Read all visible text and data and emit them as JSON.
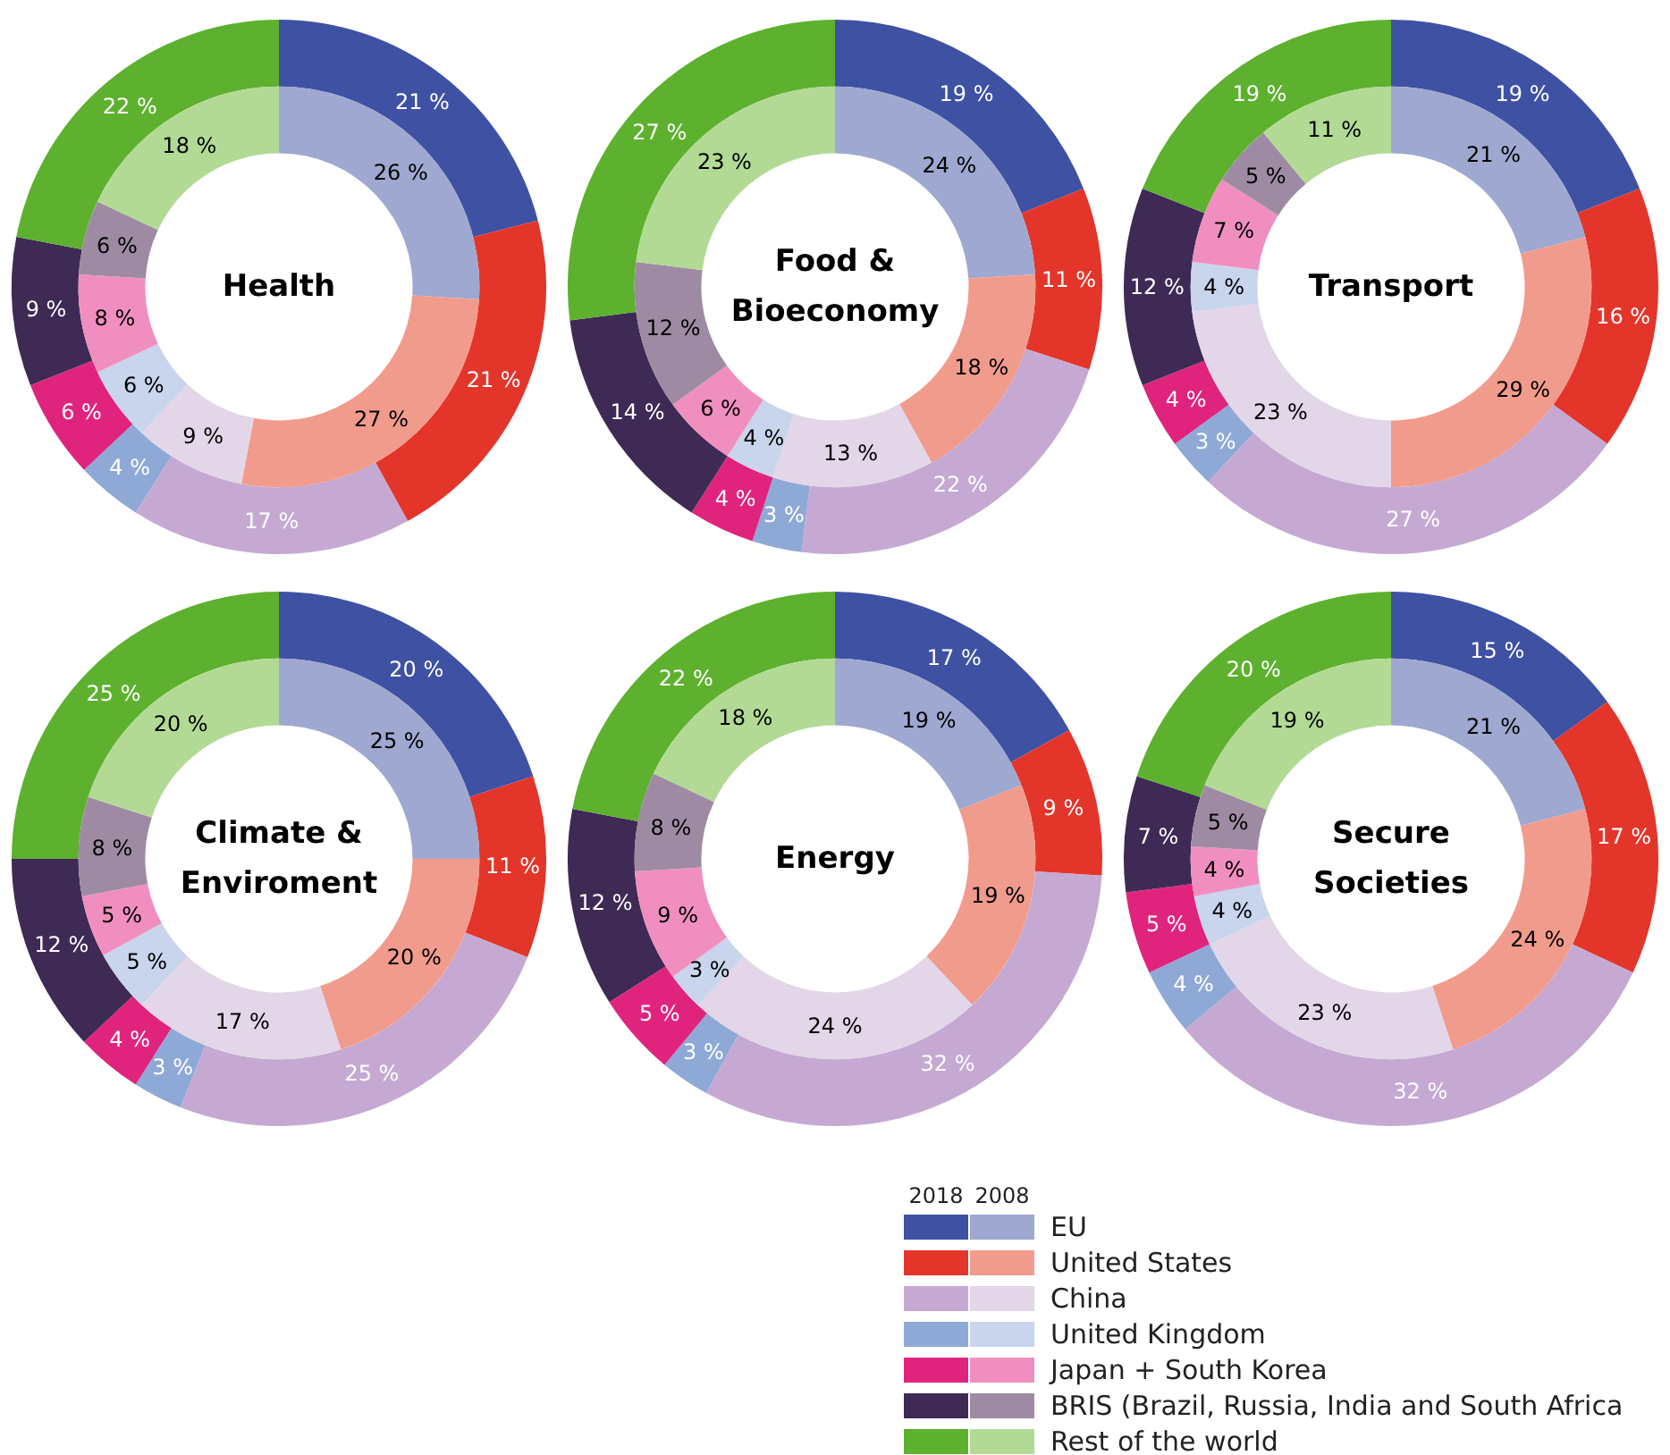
{
  "chart_data": [
    {
      "type": "donut",
      "title": "Health",
      "legend": "bottom right",
      "categories": [
        "EU",
        "United States",
        "China",
        "United Kingdom",
        "Japan + South Korea",
        "BRIS (Brazil, Russia, India and South Africa",
        "Rest of the world"
      ],
      "series": [
        {
          "name": "2018",
          "colors": [
            "#3f51a3",
            "#e4352a",
            "#c5a9d3",
            "#8fa9d6",
            "#e0247e",
            "#3e2a55",
            "#5db12e"
          ],
          "values": [
            21,
            21,
            17,
            4,
            6,
            9,
            22
          ],
          "value_labels": [
            "21 %",
            "21 %",
            "17 %",
            "4 %",
            "6 %",
            "9 %",
            "22 %"
          ]
        },
        {
          "name": "2008",
          "colors": [
            "#9fa8d0",
            "#f19b8d",
            "#e2d6e8",
            "#c8d5ec",
            "#f08fbf",
            "#9e8ba3",
            "#b2da95"
          ],
          "values": [
            26,
            27,
            9,
            6,
            8,
            6,
            18
          ],
          "value_labels": [
            "26 %",
            "27 %",
            "9 %",
            "6 %",
            "8 %",
            "6 %",
            "18 %"
          ]
        }
      ]
    },
    {
      "type": "donut",
      "title": "Food &\nBioeconomy",
      "categories": [
        null,
        null,
        null,
        null,
        null,
        null,
        null
      ],
      "series": [
        {
          "colors": [
            "#3f51a3",
            "#e4352a",
            "#c5a9d3",
            "#8fa9d6",
            "#e0247e",
            "#3e2a55",
            "#5db12e"
          ],
          "values": [
            19,
            11,
            22,
            3,
            4,
            14,
            27
          ],
          "value_labels": [
            "19 %",
            "11 %",
            "22 %",
            "3 %",
            "4 %",
            "14 %",
            "27 %"
          ]
        },
        {
          "colors": [
            "#9fa8d0",
            "#f19b8d",
            "#e2d6e8",
            "#c8d5ec",
            "#f08fbf",
            "#9e8ba3",
            "#b2da95"
          ],
          "values": [
            24,
            18,
            13,
            4,
            6,
            12,
            23
          ],
          "value_labels": [
            "24 %",
            "18 %",
            "13 %",
            "4 %",
            "6 %",
            "12 %",
            "23 %"
          ]
        }
      ]
    },
    {
      "type": "donut",
      "title": "Transport",
      "categories": [
        null,
        null,
        null,
        null,
        null,
        null,
        null
      ],
      "series": [
        {
          "colors": [
            "#3f51a3",
            "#e4352a",
            "#c5a9d3",
            "#8fa9d6",
            "#e0247e",
            "#3e2a55",
            "#5db12e"
          ],
          "values": [
            19,
            16,
            27,
            3,
            4,
            12,
            19
          ],
          "value_labels": [
            "19 %",
            "16 %",
            "27 %",
            "3 %",
            "4 %",
            "12 %",
            "19 %"
          ]
        },
        {
          "colors": [
            "#9fa8d0",
            "#f19b8d",
            "#e2d6e8",
            "#c8d5ec",
            "#f08fbf",
            "#9e8ba3",
            "#b2da95"
          ],
          "values": [
            21,
            29,
            23,
            4,
            7,
            5,
            11
          ],
          "value_labels": [
            "21 %",
            "29 %",
            "23 %",
            "4 %",
            "7 %",
            "5 %",
            "11 %"
          ]
        }
      ]
    },
    {
      "type": "donut",
      "title": "Climate &\nEnviroment",
      "categories": [
        null,
        null,
        null,
        null,
        null,
        null,
        null
      ],
      "series": [
        {
          "colors": [
            "#3f51a3",
            "#e4352a",
            "#c5a9d3",
            "#8fa9d6",
            "#e0247e",
            "#3e2a55",
            "#5db12e"
          ],
          "values": [
            20,
            11,
            25,
            3,
            4,
            12,
            25
          ],
          "value_labels": [
            "20 %",
            "11 %",
            "25 %",
            "3 %",
            "4 %",
            "12 %",
            "25 %"
          ]
        },
        {
          "colors": [
            "#9fa8d0",
            "#f19b8d",
            "#e2d6e8",
            "#c8d5ec",
            "#f08fbf",
            "#9e8ba3",
            "#b2da95"
          ],
          "values": [
            25,
            20,
            17,
            5,
            5,
            8,
            20
          ],
          "value_labels": [
            "25 %",
            "20 %",
            "17 %",
            "5 %",
            "5 %",
            "8 %",
            "20 %"
          ]
        }
      ]
    },
    {
      "type": "donut",
      "title": "Energy",
      "categories": [
        null,
        null,
        null,
        null,
        null,
        null,
        null
      ],
      "series": [
        {
          "colors": [
            "#3f51a3",
            "#e4352a",
            "#c5a9d3",
            "#8fa9d6",
            "#e0247e",
            "#3e2a55",
            "#5db12e"
          ],
          "values": [
            17,
            9,
            32,
            3,
            5,
            12,
            22
          ],
          "value_labels": [
            "17 %",
            "9 %",
            "32 %",
            "3 %",
            "5 %",
            "12 %",
            "22 %"
          ]
        },
        {
          "colors": [
            "#9fa8d0",
            "#f19b8d",
            "#e2d6e8",
            "#c8d5ec",
            "#f08fbf",
            "#9e8ba3",
            "#b2da95"
          ],
          "values": [
            19,
            19,
            24,
            3,
            9,
            8,
            18
          ],
          "value_labels": [
            "19 %",
            "19 %",
            "24 %",
            "3 %",
            "9 %",
            "8 %",
            "18 %"
          ]
        }
      ]
    },
    {
      "type": "donut",
      "title": "Secure\nSocieties",
      "categories": [
        null,
        null,
        null,
        null,
        null,
        null,
        null
      ],
      "series": [
        {
          "colors": [
            "#3f51a3",
            "#e4352a",
            "#c5a9d3",
            "#8fa9d6",
            "#e0247e",
            "#3e2a55",
            "#5db12e"
          ],
          "values": [
            15,
            17,
            32,
            4,
            5,
            7,
            20
          ],
          "value_labels": [
            "15 %",
            "17 %",
            "32 %",
            "4 %",
            "5 %",
            "7 %",
            "20 %"
          ]
        },
        {
          "colors": [
            "#9fa8d0",
            "#f19b8d",
            "#e2d6e8",
            "#c8d5ec",
            "#f08fbf",
            "#9e8ba3",
            "#b2da95"
          ],
          "values": [
            21,
            24,
            23,
            4,
            4,
            5,
            19
          ],
          "value_labels": [
            "21 %",
            "24 %",
            "23 %",
            "4 %",
            "4 %",
            "5 %",
            "19 %"
          ]
        }
      ]
    }
  ]
}
